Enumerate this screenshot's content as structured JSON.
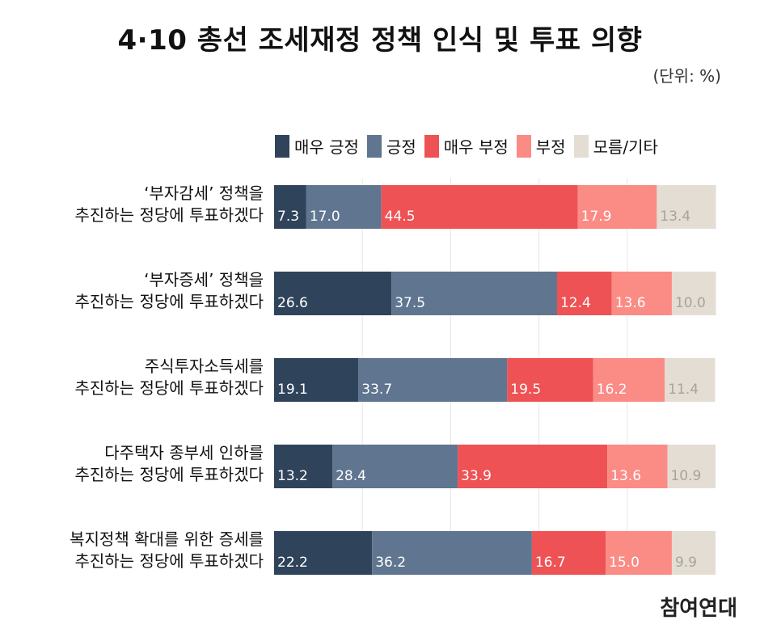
{
  "title": "4·10 총선 조세재정 정책 인식 및 투표 의향",
  "unit": "(단위: %)",
  "logo": "참여연대",
  "chart_data": {
    "type": "bar",
    "orientation": "horizontal",
    "stacked": true,
    "xlim": [
      0,
      100
    ],
    "grid": true,
    "legend_position": "top",
    "categories": [
      [
        "‘부자감세’ 정책을",
        "추진하는 정당에 투표하겠다"
      ],
      [
        "‘부자증세’ 정책을",
        "추진하는 정당에 투표하겠다"
      ],
      [
        "주식투자소득세를",
        "추진하는 정당에 투표하겠다"
      ],
      [
        "다주택자 종부세 인하를",
        "추진하는 정당에 투표하겠다"
      ],
      [
        "복지정책 확대를 위한 증세를",
        "추진하는 정당에 투표하겠다"
      ]
    ],
    "series": [
      {
        "name": "매우 긍정",
        "color": "#2f435a",
        "label_color": "#ffffff",
        "values": [
          7.3,
          26.6,
          19.1,
          13.2,
          22.2
        ]
      },
      {
        "name": "긍정",
        "color": "#5f7590",
        "label_color": "#ffffff",
        "values": [
          17.0,
          37.5,
          33.7,
          28.4,
          36.2
        ]
      },
      {
        "name": "매우 부정",
        "color": "#ee5254",
        "label_color": "#ffffff",
        "values": [
          44.5,
          12.4,
          19.5,
          33.9,
          16.7
        ]
      },
      {
        "name": "부정",
        "color": "#fb8b85",
        "label_color": "#ffffff",
        "values": [
          17.9,
          13.6,
          16.2,
          13.6,
          15.0
        ]
      },
      {
        "name": "모름/기타",
        "color": "#e4ddd3",
        "label_color": "#a8a39c",
        "values": [
          13.4,
          10.0,
          11.4,
          10.9,
          9.9
        ]
      }
    ]
  }
}
